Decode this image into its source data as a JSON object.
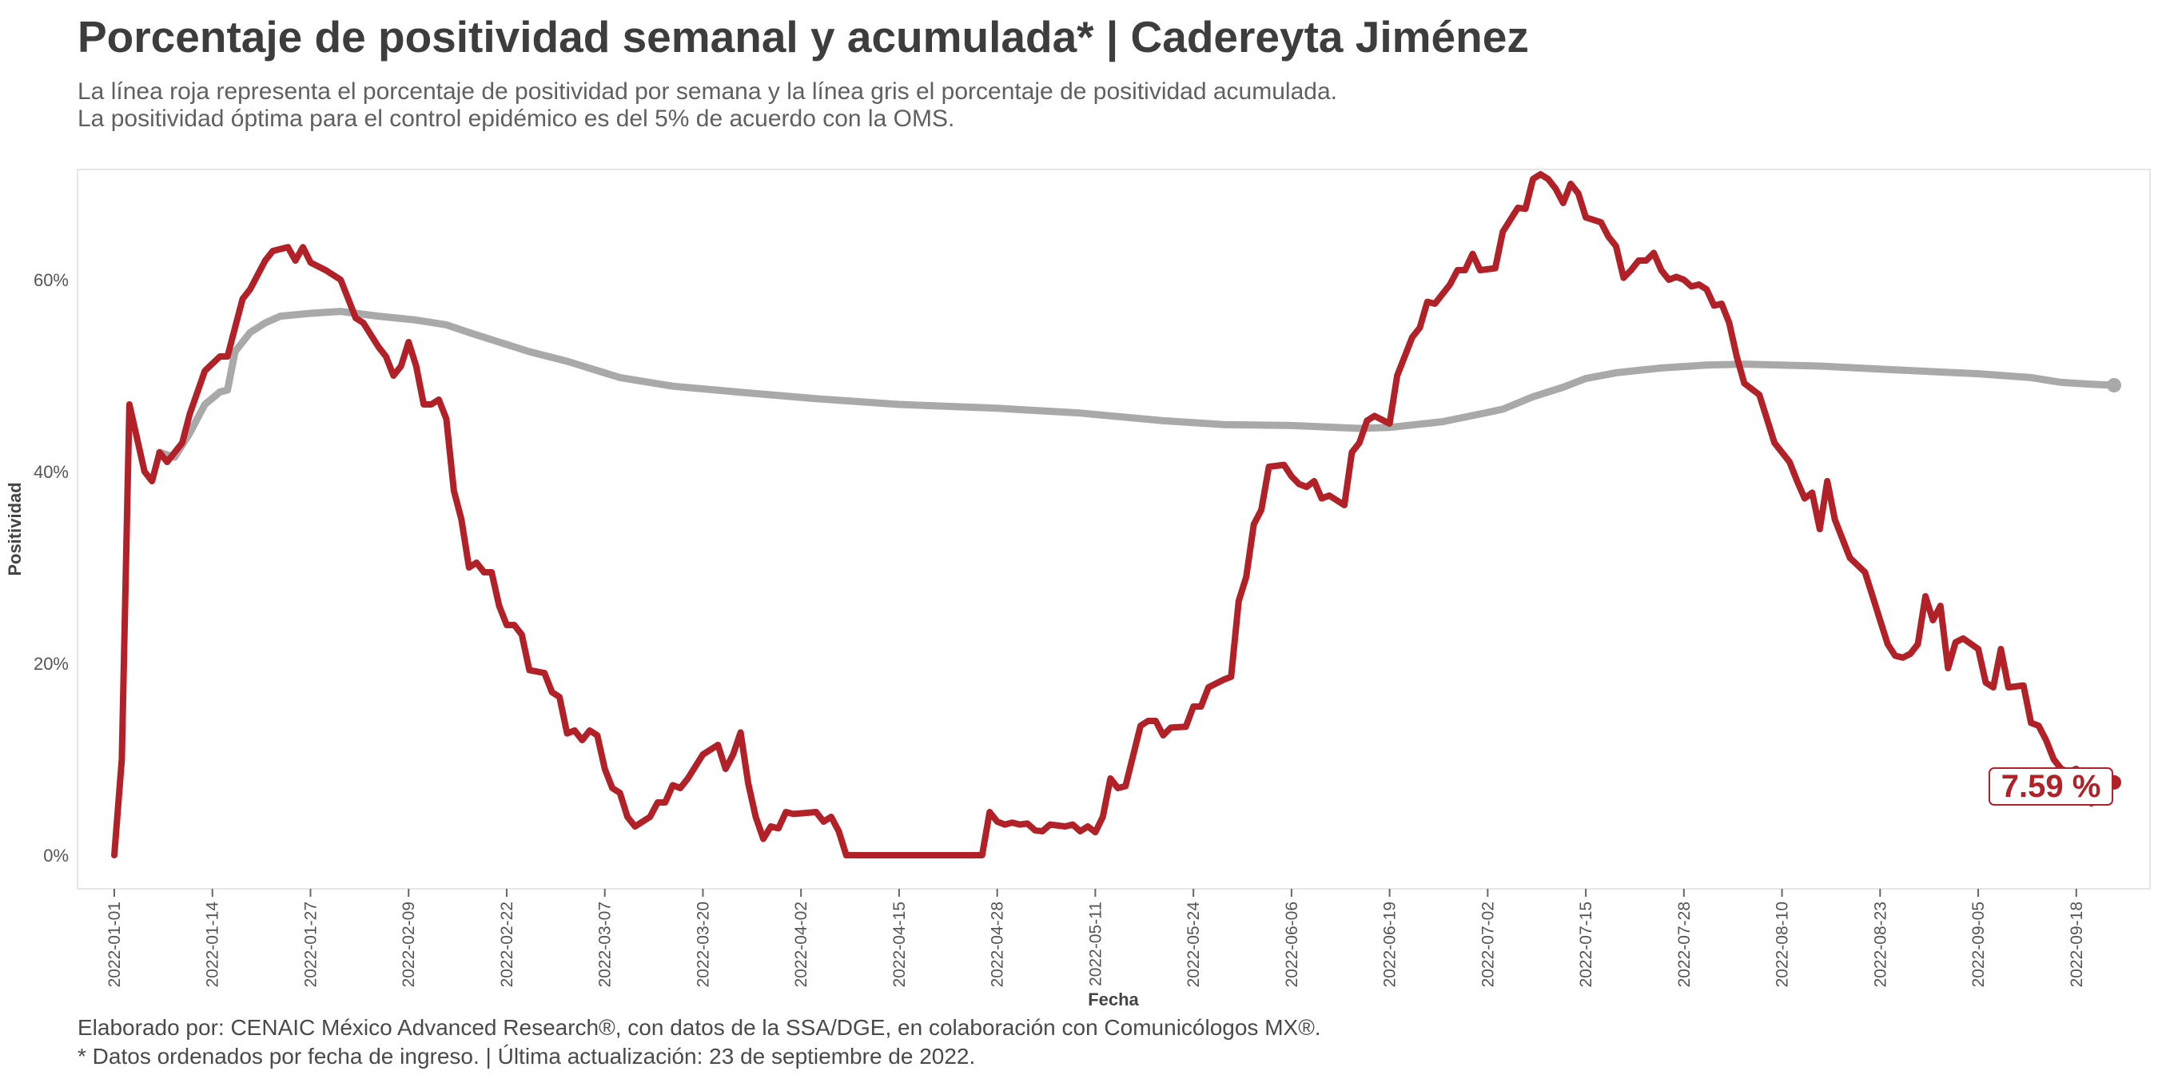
{
  "header": {
    "title": "Porcentaje de positividad semanal y acumulada* | Cadereyta Jiménez",
    "subtitle_1": "La línea roja representa el porcentaje de positividad por semana y la línea gris el porcentaje de positividad acumulada.",
    "subtitle_2": "La positividad óptima para el control epidémico es del 5% de acuerdo con la OMS."
  },
  "footer": {
    "caption_1": "Elaborado por: CENAIC México Advanced Research®, con datos de la SSA/DGE, en colaboración con Comunicólogos MX®.",
    "caption_2": "* Datos ordenados por fecha de ingreso. | Última actualización: 23 de septiembre de 2022."
  },
  "colors": {
    "weekly": "#b22028",
    "cumulative": "#a9a9a9",
    "panel_border": "#e6e6e6"
  },
  "chart_data": {
    "type": "line",
    "xlabel": "Fecha",
    "ylabel": "Positividad",
    "xlim": [
      "2022-01-01",
      "2022-09-23"
    ],
    "ylim": [
      -3.5,
      71.5
    ],
    "x_ticks": [
      "2022-01-01",
      "2022-01-14",
      "2022-01-27",
      "2022-02-09",
      "2022-02-22",
      "2022-03-07",
      "2022-03-20",
      "2022-04-02",
      "2022-04-15",
      "2022-04-28",
      "2022-05-11",
      "2022-05-24",
      "2022-06-06",
      "2022-06-19",
      "2022-07-02",
      "2022-07-15",
      "2022-07-28",
      "2022-08-10",
      "2022-08-23",
      "2022-09-05",
      "2022-09-18"
    ],
    "y_ticks": [
      0,
      20,
      40,
      60
    ],
    "y_tick_labels": [
      "0%",
      "20%",
      "40%",
      "60%"
    ],
    "grid": false,
    "end_label": "7.59 %",
    "series": [
      {
        "name": "",
        "role": "weekly",
        "points": [
          [
            "2022-01-01",
            0
          ],
          [
            "2022-01-02",
            10
          ],
          [
            "2022-01-03",
            47
          ],
          [
            "2022-01-05",
            40
          ],
          [
            "2022-01-06",
            39
          ],
          [
            "2022-01-07",
            42
          ],
          [
            "2022-01-08",
            41
          ],
          [
            "2022-01-10",
            43
          ],
          [
            "2022-01-11",
            46
          ],
          [
            "2022-01-13",
            50.5
          ],
          [
            "2022-01-15",
            52
          ],
          [
            "2022-01-16",
            52
          ],
          [
            "2022-01-18",
            58
          ],
          [
            "2022-01-19",
            59
          ],
          [
            "2022-01-21",
            62
          ],
          [
            "2022-01-22",
            63
          ],
          [
            "2022-01-24",
            63.4
          ],
          [
            "2022-01-25",
            62
          ],
          [
            "2022-01-26",
            63.4
          ],
          [
            "2022-01-27",
            61.8
          ],
          [
            "2022-01-29",
            61
          ],
          [
            "2022-01-31",
            60
          ],
          [
            "2022-02-01",
            58
          ],
          [
            "2022-02-02",
            56
          ],
          [
            "2022-02-03",
            55.5
          ],
          [
            "2022-02-05",
            53
          ],
          [
            "2022-02-06",
            52
          ],
          [
            "2022-02-07",
            50
          ],
          [
            "2022-02-08",
            51
          ],
          [
            "2022-02-09",
            53.5
          ],
          [
            "2022-02-10",
            51
          ],
          [
            "2022-02-11",
            47
          ],
          [
            "2022-02-12",
            47
          ],
          [
            "2022-02-13",
            47.5
          ],
          [
            "2022-02-14",
            45.5
          ],
          [
            "2022-02-15",
            38
          ],
          [
            "2022-02-16",
            35
          ],
          [
            "2022-02-17",
            30
          ],
          [
            "2022-02-18",
            30.5
          ],
          [
            "2022-02-19",
            29.5
          ],
          [
            "2022-02-20",
            29.5
          ],
          [
            "2022-02-21",
            26
          ],
          [
            "2022-02-22",
            24
          ],
          [
            "2022-02-23",
            24
          ],
          [
            "2022-02-24",
            23
          ],
          [
            "2022-02-25",
            19.3
          ],
          [
            "2022-02-27",
            19
          ],
          [
            "2022-02-28",
            17
          ],
          [
            "2022-03-01",
            16.5
          ],
          [
            "2022-03-02",
            12.7
          ],
          [
            "2022-03-03",
            13
          ],
          [
            "2022-03-04",
            12
          ],
          [
            "2022-03-05",
            13
          ],
          [
            "2022-03-06",
            12.5
          ],
          [
            "2022-03-07",
            9
          ],
          [
            "2022-03-08",
            7
          ],
          [
            "2022-03-09",
            6.5
          ],
          [
            "2022-03-10",
            4
          ],
          [
            "2022-03-11",
            3
          ],
          [
            "2022-03-13",
            4
          ],
          [
            "2022-03-14",
            5.5
          ],
          [
            "2022-03-15",
            5.5
          ],
          [
            "2022-03-16",
            7.3
          ],
          [
            "2022-03-17",
            7
          ],
          [
            "2022-03-18",
            8
          ],
          [
            "2022-03-20",
            10.5
          ],
          [
            "2022-03-22",
            11.5
          ],
          [
            "2022-03-23",
            9
          ],
          [
            "2022-03-24",
            10.5
          ],
          [
            "2022-03-25",
            12.8
          ],
          [
            "2022-03-26",
            7.5
          ],
          [
            "2022-03-27",
            4
          ],
          [
            "2022-03-28",
            1.7
          ],
          [
            "2022-03-29",
            3
          ],
          [
            "2022-03-30",
            2.8
          ],
          [
            "2022-03-31",
            4.5
          ],
          [
            "2022-04-01",
            4.3
          ],
          [
            "2022-04-04",
            4.5
          ],
          [
            "2022-04-05",
            3.5
          ],
          [
            "2022-04-06",
            4
          ],
          [
            "2022-04-07",
            2.5
          ],
          [
            "2022-04-08",
            0
          ],
          [
            "2022-04-26",
            0
          ],
          [
            "2022-04-27",
            4.5
          ],
          [
            "2022-04-28",
            3.5
          ],
          [
            "2022-04-29",
            3.2
          ],
          [
            "2022-04-30",
            3.4
          ],
          [
            "2022-05-01",
            3.2
          ],
          [
            "2022-05-02",
            3.3
          ],
          [
            "2022-05-03",
            2.6
          ],
          [
            "2022-05-04",
            2.5
          ],
          [
            "2022-05-05",
            3.2
          ],
          [
            "2022-05-07",
            3
          ],
          [
            "2022-05-08",
            3.2
          ],
          [
            "2022-05-09",
            2.5
          ],
          [
            "2022-05-10",
            3
          ],
          [
            "2022-05-11",
            2.4
          ],
          [
            "2022-05-12",
            4
          ],
          [
            "2022-05-13",
            8
          ],
          [
            "2022-05-14",
            7
          ],
          [
            "2022-05-15",
            7.2
          ],
          [
            "2022-05-17",
            13.5
          ],
          [
            "2022-05-18",
            14
          ],
          [
            "2022-05-19",
            14
          ],
          [
            "2022-05-20",
            12.5
          ],
          [
            "2022-05-21",
            13.3
          ],
          [
            "2022-05-23",
            13.4
          ],
          [
            "2022-05-24",
            15.5
          ],
          [
            "2022-05-25",
            15.5
          ],
          [
            "2022-05-26",
            17.5
          ],
          [
            "2022-05-28",
            18.3
          ],
          [
            "2022-05-29",
            18.6
          ],
          [
            "2022-05-30",
            26.5
          ],
          [
            "2022-05-31",
            29
          ],
          [
            "2022-06-01",
            34.5
          ],
          [
            "2022-06-02",
            36
          ],
          [
            "2022-06-03",
            40.5
          ],
          [
            "2022-06-05",
            40.7
          ],
          [
            "2022-06-06",
            39.5
          ],
          [
            "2022-06-07",
            38.7
          ],
          [
            "2022-06-08",
            38.4
          ],
          [
            "2022-06-09",
            39
          ],
          [
            "2022-06-10",
            37.2
          ],
          [
            "2022-06-11",
            37.5
          ],
          [
            "2022-06-13",
            36.5
          ],
          [
            "2022-06-14",
            42
          ],
          [
            "2022-06-15",
            43
          ],
          [
            "2022-06-16",
            45.3
          ],
          [
            "2022-06-17",
            45.8
          ],
          [
            "2022-06-19",
            45
          ],
          [
            "2022-06-20",
            50
          ],
          [
            "2022-06-22",
            54
          ],
          [
            "2022-06-23",
            55
          ],
          [
            "2022-06-24",
            57.7
          ],
          [
            "2022-06-25",
            57.5
          ],
          [
            "2022-06-26",
            58.5
          ],
          [
            "2022-06-27",
            59.5
          ],
          [
            "2022-06-28",
            61
          ],
          [
            "2022-06-29",
            61
          ],
          [
            "2022-06-30",
            62.7
          ],
          [
            "2022-07-01",
            61
          ],
          [
            "2022-07-03",
            61.2
          ],
          [
            "2022-07-04",
            65
          ],
          [
            "2022-07-06",
            67.5
          ],
          [
            "2022-07-07",
            67.4
          ],
          [
            "2022-07-08",
            70.5
          ],
          [
            "2022-07-09",
            71
          ],
          [
            "2022-07-10",
            70.5
          ],
          [
            "2022-07-11",
            69.5
          ],
          [
            "2022-07-12",
            68
          ],
          [
            "2022-07-13",
            70
          ],
          [
            "2022-07-14",
            69
          ],
          [
            "2022-07-15",
            66.5
          ],
          [
            "2022-07-17",
            66
          ],
          [
            "2022-07-18",
            64.5
          ],
          [
            "2022-07-19",
            63.5
          ],
          [
            "2022-07-20",
            60.2
          ],
          [
            "2022-07-21",
            61
          ],
          [
            "2022-07-22",
            62
          ],
          [
            "2022-07-23",
            62
          ],
          [
            "2022-07-24",
            62.8
          ],
          [
            "2022-07-25",
            61
          ],
          [
            "2022-07-26",
            60
          ],
          [
            "2022-07-27",
            60.3
          ],
          [
            "2022-07-28",
            60
          ],
          [
            "2022-07-29",
            59.3
          ],
          [
            "2022-07-30",
            59.5
          ],
          [
            "2022-07-31",
            59
          ],
          [
            "2022-08-01",
            57.3
          ],
          [
            "2022-08-02",
            57.5
          ],
          [
            "2022-08-03",
            55.5
          ],
          [
            "2022-08-04",
            52
          ],
          [
            "2022-08-05",
            49.2
          ],
          [
            "2022-08-07",
            48
          ],
          [
            "2022-08-08",
            45.5
          ],
          [
            "2022-08-09",
            43
          ],
          [
            "2022-08-11",
            41
          ],
          [
            "2022-08-12",
            39
          ],
          [
            "2022-08-13",
            37.2
          ],
          [
            "2022-08-14",
            37.8
          ],
          [
            "2022-08-15",
            34
          ],
          [
            "2022-08-16",
            39
          ],
          [
            "2022-08-17",
            35
          ],
          [
            "2022-08-18",
            33
          ],
          [
            "2022-08-19",
            31
          ],
          [
            "2022-08-21",
            29.5
          ],
          [
            "2022-08-22",
            27
          ],
          [
            "2022-08-23",
            24.5
          ],
          [
            "2022-08-24",
            22
          ],
          [
            "2022-08-25",
            20.8
          ],
          [
            "2022-08-26",
            20.6
          ],
          [
            "2022-08-27",
            21
          ],
          [
            "2022-08-28",
            22
          ],
          [
            "2022-08-29",
            27
          ],
          [
            "2022-08-30",
            24.5
          ],
          [
            "2022-08-31",
            26
          ],
          [
            "2022-09-01",
            19.5
          ],
          [
            "2022-09-02",
            22.2
          ],
          [
            "2022-09-03",
            22.6
          ],
          [
            "2022-09-05",
            21.5
          ],
          [
            "2022-09-06",
            18
          ],
          [
            "2022-09-07",
            17.5
          ],
          [
            "2022-09-08",
            21.5
          ],
          [
            "2022-09-09",
            17.5
          ],
          [
            "2022-09-11",
            17.7
          ],
          [
            "2022-09-12",
            13.8
          ],
          [
            "2022-09-13",
            13.5
          ],
          [
            "2022-09-14",
            12
          ],
          [
            "2022-09-15",
            10
          ],
          [
            "2022-09-16",
            9
          ],
          [
            "2022-09-17",
            8.7
          ],
          [
            "2022-09-18",
            9
          ],
          [
            "2022-09-19",
            7.8
          ],
          [
            "2022-09-20",
            5.4
          ],
          [
            "2022-09-21",
            7.5
          ],
          [
            "2022-09-23",
            7.59
          ]
        ]
      },
      {
        "name": "",
        "role": "cumulative",
        "points": [
          [
            "2022-01-07",
            42
          ],
          [
            "2022-01-09",
            41.5
          ],
          [
            "2022-01-11",
            44
          ],
          [
            "2022-01-13",
            47
          ],
          [
            "2022-01-15",
            48.3
          ],
          [
            "2022-01-16",
            48.5
          ],
          [
            "2022-01-17",
            52.5
          ],
          [
            "2022-01-19",
            54.5
          ],
          [
            "2022-01-21",
            55.5
          ],
          [
            "2022-01-23",
            56.2
          ],
          [
            "2022-01-27",
            56.5
          ],
          [
            "2022-01-31",
            56.7
          ],
          [
            "2022-02-05",
            56.2
          ],
          [
            "2022-02-10",
            55.8
          ],
          [
            "2022-02-14",
            55.3
          ],
          [
            "2022-02-17",
            54.5
          ],
          [
            "2022-02-21",
            53.5
          ],
          [
            "2022-02-25",
            52.5
          ],
          [
            "2022-03-02",
            51.5
          ],
          [
            "2022-03-09",
            49.8
          ],
          [
            "2022-03-16",
            48.9
          ],
          [
            "2022-03-26",
            48.2
          ],
          [
            "2022-04-04",
            47.6
          ],
          [
            "2022-04-15",
            47.0
          ],
          [
            "2022-04-28",
            46.6
          ],
          [
            "2022-05-09",
            46.1
          ],
          [
            "2022-05-20",
            45.3
          ],
          [
            "2022-05-28",
            44.9
          ],
          [
            "2022-06-06",
            44.8
          ],
          [
            "2022-06-15",
            44.5
          ],
          [
            "2022-06-19",
            44.6
          ],
          [
            "2022-06-26",
            45.2
          ],
          [
            "2022-07-01",
            46.0
          ],
          [
            "2022-07-04",
            46.5
          ],
          [
            "2022-07-08",
            47.8
          ],
          [
            "2022-07-12",
            48.8
          ],
          [
            "2022-07-15",
            49.7
          ],
          [
            "2022-07-19",
            50.3
          ],
          [
            "2022-07-25",
            50.8
          ],
          [
            "2022-07-31",
            51.1
          ],
          [
            "2022-08-05",
            51.2
          ],
          [
            "2022-08-15",
            51.0
          ],
          [
            "2022-08-25",
            50.6
          ],
          [
            "2022-09-05",
            50.2
          ],
          [
            "2022-09-12",
            49.8
          ],
          [
            "2022-09-16",
            49.3
          ],
          [
            "2022-09-20",
            49.1
          ],
          [
            "2022-09-23",
            49.0
          ]
        ]
      }
    ]
  }
}
